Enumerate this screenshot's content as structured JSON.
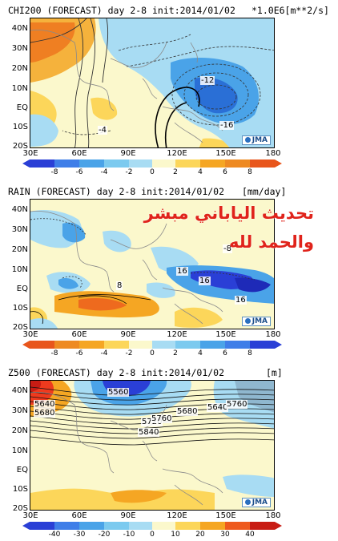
{
  "panels": [
    {
      "title": "CHI200 (FORECAST) day 2-8 init:2014/01/02",
      "units": "*1.0E6[m**2/s]",
      "colorbar_ticks": [
        "-8",
        "-6",
        "-4",
        "-2",
        "0",
        "2",
        "4",
        "6",
        "8"
      ],
      "labels": [
        "-12",
        "-4",
        "-16"
      ]
    },
    {
      "title": "RAIN (FORECAST) day 2-8 init:2014/01/02",
      "units": "[mm/day]",
      "colorbar_ticks": [
        "-8",
        "-6",
        "-4",
        "-2",
        "0",
        "2",
        "4",
        "6",
        "8"
      ],
      "labels": [
        "8",
        "-8",
        "16",
        "16",
        "16"
      ]
    },
    {
      "title": "Z500 (FORECAST) day 2-8 init:2014/01/02",
      "units": "[m]",
      "colorbar_ticks": [
        "-40",
        "-30",
        "-20",
        "-10",
        "0",
        "10",
        "20",
        "30",
        "40"
      ],
      "labels": [
        "5560",
        "5640",
        "5680",
        "5720",
        "5760",
        "5840",
        "5640",
        "5680",
        "5760"
      ]
    }
  ],
  "lat_labels": [
    "40N",
    "30N",
    "20N",
    "10N",
    "EQ",
    "10S",
    "20S"
  ],
  "lon_labels": [
    "30E",
    "60E",
    "90E",
    "120E",
    "150E",
    "180"
  ],
  "logo": "JMA",
  "overlay_text": {
    "line1": "تحديث الياباني مبشر",
    "line2": "والحمد لله"
  },
  "colors": {
    "neg_strong": "#2a3fd6",
    "neg": "#4aa3e8",
    "neg_light": "#a8dcf3",
    "neutral": "#fbf8cc",
    "pos_light": "#fcd65a",
    "pos": "#f5a623",
    "pos_strong": "#ee6a1e",
    "land_line": "#8a8a8a",
    "overlay": "#e0231b"
  }
}
